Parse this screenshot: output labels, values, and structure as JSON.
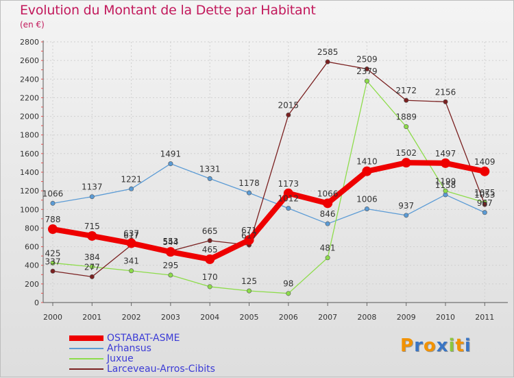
{
  "chart_data": {
    "type": "line",
    "title": "Evolution du Montant de la Dette par Habitant",
    "subtitle": "(en €)",
    "x": [
      "2000",
      "2001",
      "2002",
      "2003",
      "2004",
      "2005",
      "2006",
      "2007",
      "2008",
      "2009",
      "2010",
      "2011"
    ],
    "ylim": [
      0,
      2800
    ],
    "yticks": [
      0,
      200,
      400,
      600,
      800,
      1000,
      1200,
      1400,
      1600,
      1800,
      2000,
      2200,
      2400,
      2600,
      2800
    ],
    "grid": true,
    "legend_position": "bottom-left",
    "series": [
      {
        "name": "OSTABAT-ASME",
        "color": "#ee0000",
        "values": [
          788,
          715,
          637,
          544,
          465,
          671,
          1173,
          1066,
          1410,
          1502,
          1497,
          1409
        ]
      },
      {
        "name": "Arhansus",
        "color": "#5b9bd5",
        "values": [
          1066,
          1137,
          1221,
          1491,
          1331,
          1178,
          1012,
          846,
          1006,
          937,
          1158,
          967
        ]
      },
      {
        "name": "Juxue",
        "color": "#8ddc4a",
        "values": [
          425,
          384,
          341,
          295,
          170,
          125,
          98,
          481,
          2379,
          1889,
          1199,
          1075
        ]
      },
      {
        "name": "Larceveau-Arros-Cibits",
        "color": "#7a2020",
        "values": [
          337,
          277,
          617,
          553,
          665,
          617,
          2015,
          2585,
          2509,
          2172,
          2156,
          1053
        ]
      }
    ]
  },
  "logo": {
    "letters": [
      "P",
      "r",
      "o",
      "x",
      "i",
      "t",
      "i"
    ],
    "colors": [
      "#f29200",
      "#3a75c4",
      "#f29200",
      "#3a75c4",
      "#8cc63f",
      "#f29200",
      "#3a75c4"
    ]
  }
}
